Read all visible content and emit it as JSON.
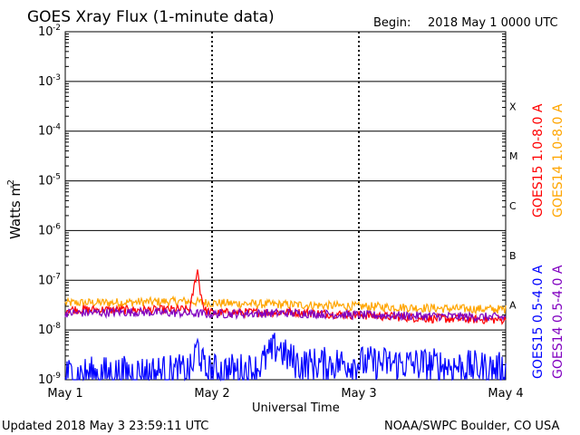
{
  "header": {
    "title": "GOES Xray Flux (1-minute data)",
    "begin_label": "Begin:",
    "begin_value": "2018 May 1 0000 UTC"
  },
  "footer": {
    "updated": "Updated 2018 May  3 23:59:11 UTC",
    "source": "NOAA/SWPC Boulder, CO USA"
  },
  "chart_data": {
    "type": "line",
    "ylabel": "Watts m",
    "ylabel_exponent": "-2",
    "xlabel": "Universal Time",
    "yscale": "log",
    "ylim": [
      1e-09,
      0.01
    ],
    "y_ticks": [
      {
        "mantissa": "10",
        "exp": "-9"
      },
      {
        "mantissa": "10",
        "exp": "-8"
      },
      {
        "mantissa": "10",
        "exp": "-7"
      },
      {
        "mantissa": "10",
        "exp": "-6"
      },
      {
        "mantissa": "10",
        "exp": "-5"
      },
      {
        "mantissa": "10",
        "exp": "-4"
      },
      {
        "mantissa": "10",
        "exp": "-3"
      },
      {
        "mantissa": "10",
        "exp": "-2"
      }
    ],
    "x_ticks": [
      "May 1",
      "May 2",
      "May 3",
      "May 4"
    ],
    "xlim_days": [
      0,
      3
    ],
    "flare_classes": [
      "A",
      "B",
      "C",
      "M",
      "X"
    ],
    "legend": {
      "right_group": [
        {
          "label": "GOES15 1.0-8.0 A",
          "color": "#ff0000"
        },
        {
          "label": "GOES14 1.0-8.0 A",
          "color": "#ffa500"
        }
      ],
      "left_group": [
        {
          "label": "GOES15 0.5-4.0 A",
          "color": "#0000ff"
        },
        {
          "label": "GOES14 0.5-4.0 A",
          "color": "#8000c0"
        }
      ]
    },
    "series": [
      {
        "name": "GOES14 1.0-8.0 A",
        "color": "#ffa500",
        "x": [
          0,
          0.4,
          0.8,
          1.0,
          1.4,
          1.8,
          2.2,
          2.6,
          3.0
        ],
        "y": [
          3.5e-08,
          3.6e-08,
          3.8e-08,
          3.5e-08,
          3.3e-08,
          3.1e-08,
          2.9e-08,
          2.7e-08,
          2.6e-08
        ]
      },
      {
        "name": "GOES15 1.0-8.0 A",
        "color": "#ff0000",
        "x": [
          0,
          0.5,
          0.85,
          0.9,
          0.92,
          0.95,
          1.0,
          1.5,
          2.0,
          2.5,
          3.0
        ],
        "y": [
          2.6e-08,
          2.5e-08,
          2.6e-08,
          1.7e-07,
          6e-08,
          2.5e-08,
          2.2e-08,
          2.3e-08,
          2e-08,
          1.7e-08,
          1.6e-08
        ]
      },
      {
        "name": "GOES14 0.5-4.0 A",
        "color": "#8000c0",
        "x": [
          0,
          0.5,
          1.0,
          1.5,
          2.0,
          2.5,
          3.0
        ],
        "y": [
          2.2e-08,
          2.3e-08,
          2.1e-08,
          2.2e-08,
          2e-08,
          1.9e-08,
          1.8e-08
        ]
      },
      {
        "name": "GOES15 0.5-4.0 A",
        "color": "#0000ff",
        "x": [
          0,
          0.5,
          0.86,
          0.9,
          0.95,
          1.3,
          1.45,
          1.5,
          1.6,
          2.0,
          2.5,
          3.0
        ],
        "y": [
          1.3e-09,
          1.4e-09,
          1.5e-09,
          5e-09,
          1.5e-09,
          1.6e-09,
          5e-09,
          3e-09,
          2e-09,
          2.2e-09,
          2e-09,
          1.6e-09
        ]
      }
    ]
  }
}
